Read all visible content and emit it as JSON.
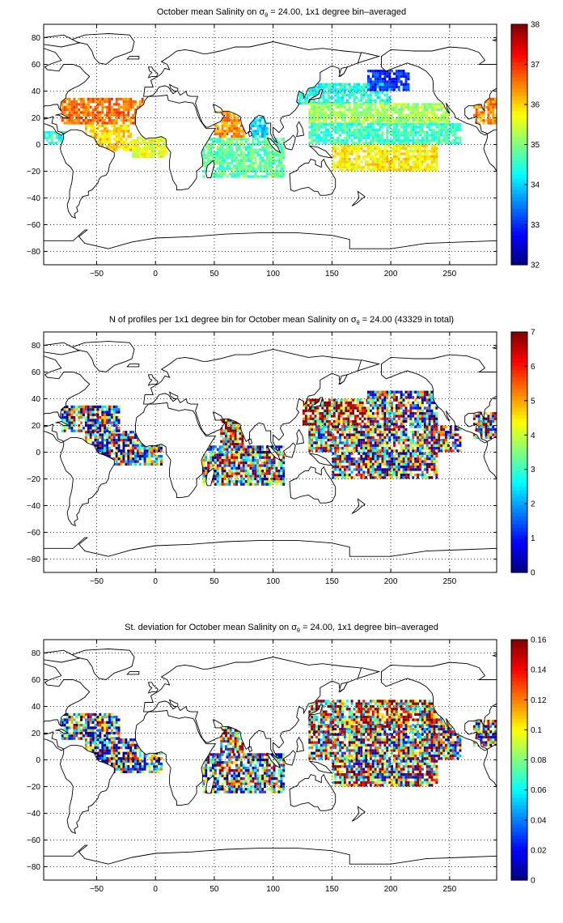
{
  "chart_data": [
    {
      "type": "heatmap",
      "title": {
        "pre": "October mean Salinity on ",
        "sigma": "σ",
        "sub": "θ",
        "post": " = 24.00, 1x1 degree bin–averaged"
      },
      "xticks": [
        -50,
        0,
        50,
        100,
        150,
        200,
        250
      ],
      "yticks": [
        80,
        60,
        40,
        20,
        0,
        -20,
        -40,
        -60,
        -80
      ],
      "xlim": [
        -95,
        290
      ],
      "ylim": [
        -90,
        90
      ],
      "grid": true,
      "colorbar": {
        "min": 32,
        "max": 38,
        "ticks": [
          32,
          33,
          34,
          35,
          36,
          37,
          38
        ],
        "colormap": "jet"
      },
      "regions": [
        {
          "lon": [
            -80,
            -10
          ],
          "lat": [
            15,
            35
          ],
          "value": 36.6
        },
        {
          "lon": [
            -60,
            -20
          ],
          "lat": [
            -5,
            15
          ],
          "value": 36.0
        },
        {
          "lon": [
            -20,
            10
          ],
          "lat": [
            -10,
            5
          ],
          "value": 35.6
        },
        {
          "lon": [
            -95,
            -75
          ],
          "lat": [
            0,
            10
          ],
          "value": 34.5
        },
        {
          "lon": [
            50,
            75
          ],
          "lat": [
            5,
            25
          ],
          "value": 36.4
        },
        {
          "lon": [
            80,
            95
          ],
          "lat": [
            5,
            20
          ],
          "value": 34.0
        },
        {
          "lon": [
            40,
            110
          ],
          "lat": [
            -25,
            5
          ],
          "value": 34.8
        },
        {
          "lon": [
            120,
            200
          ],
          "lat": [
            30,
            45
          ],
          "value": 34.4
        },
        {
          "lon": [
            130,
            250
          ],
          "lat": [
            15,
            30
          ],
          "value": 35.2
        },
        {
          "lon": [
            130,
            260
          ],
          "lat": [
            0,
            15
          ],
          "value": 34.6
        },
        {
          "lon": [
            150,
            240
          ],
          "lat": [
            -20,
            0
          ],
          "value": 35.8
        },
        {
          "lon": [
            180,
            215
          ],
          "lat": [
            40,
            55
          ],
          "value": 33.0
        },
        {
          "lon": [
            270,
            290
          ],
          "lat": [
            15,
            35
          ],
          "value": 36.4
        }
      ]
    },
    {
      "type": "heatmap",
      "title": {
        "pre": "N of profiles per 1x1 degree bin for October mean Salinity on ",
        "sigma": "σ",
        "sub": "θ",
        "post": " = 24.00 (43329 in total)"
      },
      "xticks": [
        -50,
        0,
        50,
        100,
        150,
        200,
        250
      ],
      "yticks": [
        80,
        60,
        40,
        20,
        0,
        -20,
        -40,
        -60,
        -80
      ],
      "xlim": [
        -95,
        290
      ],
      "ylim": [
        -90,
        90
      ],
      "grid": true,
      "colorbar": {
        "min": 0,
        "max": 7,
        "ticks": [
          0,
          1,
          2,
          3,
          4,
          5,
          6,
          7
        ],
        "colormap": "jet"
      },
      "regions": [
        {
          "lon": [
            -80,
            -30
          ],
          "lat": [
            15,
            35
          ],
          "value": 3.0
        },
        {
          "lon": [
            -60,
            5
          ],
          "lat": [
            -10,
            15
          ],
          "value": 2.5
        },
        {
          "lon": [
            55,
            75
          ],
          "lat": [
            5,
            25
          ],
          "value": 6.0
        },
        {
          "lon": [
            40,
            110
          ],
          "lat": [
            -25,
            5
          ],
          "value": 3.5
        },
        {
          "lon": [
            125,
            180
          ],
          "lat": [
            20,
            40
          ],
          "value": 6.5
        },
        {
          "lon": [
            130,
            260
          ],
          "lat": [
            0,
            20
          ],
          "value": 4.0
        },
        {
          "lon": [
            150,
            240
          ],
          "lat": [
            -20,
            0
          ],
          "value": 3.5
        },
        {
          "lon": [
            180,
            240
          ],
          "lat": [
            20,
            45
          ],
          "value": 3.0
        },
        {
          "lon": [
            270,
            290
          ],
          "lat": [
            10,
            30
          ],
          "value": 4.0
        }
      ]
    },
    {
      "type": "heatmap",
      "title": {
        "pre": "St. deviation for October mean Salinity on ",
        "sigma": "σ",
        "sub": "θ",
        "post": " = 24.00, 1x1 degree bin–averaged"
      },
      "xticks": [
        -50,
        0,
        50,
        100,
        150,
        200,
        250
      ],
      "yticks": [
        80,
        60,
        40,
        20,
        0,
        -20,
        -40,
        -60,
        -80
      ],
      "xlim": [
        -95,
        290
      ],
      "ylim": [
        -90,
        90
      ],
      "grid": true,
      "colorbar": {
        "min": 0,
        "max": 0.16,
        "ticks": [
          0,
          0.02,
          0.04,
          0.06,
          0.08,
          0.1,
          0.12,
          0.14,
          0.16
        ],
        "colormap": "jet"
      },
      "regions": [
        {
          "lon": [
            -80,
            -30
          ],
          "lat": [
            15,
            35
          ],
          "value": 0.06
        },
        {
          "lon": [
            -60,
            5
          ],
          "lat": [
            -10,
            15
          ],
          "value": 0.05
        },
        {
          "lon": [
            55,
            75
          ],
          "lat": [
            5,
            25
          ],
          "value": 0.12
        },
        {
          "lon": [
            40,
            110
          ],
          "lat": [
            -25,
            5
          ],
          "value": 0.07
        },
        {
          "lon": [
            130,
            250
          ],
          "lat": [
            25,
            45
          ],
          "value": 0.13
        },
        {
          "lon": [
            130,
            260
          ],
          "lat": [
            0,
            25
          ],
          "value": 0.09
        },
        {
          "lon": [
            150,
            240
          ],
          "lat": [
            -20,
            0
          ],
          "value": 0.1
        },
        {
          "lon": [
            270,
            290
          ],
          "lat": [
            10,
            30
          ],
          "value": 0.08
        }
      ]
    }
  ]
}
